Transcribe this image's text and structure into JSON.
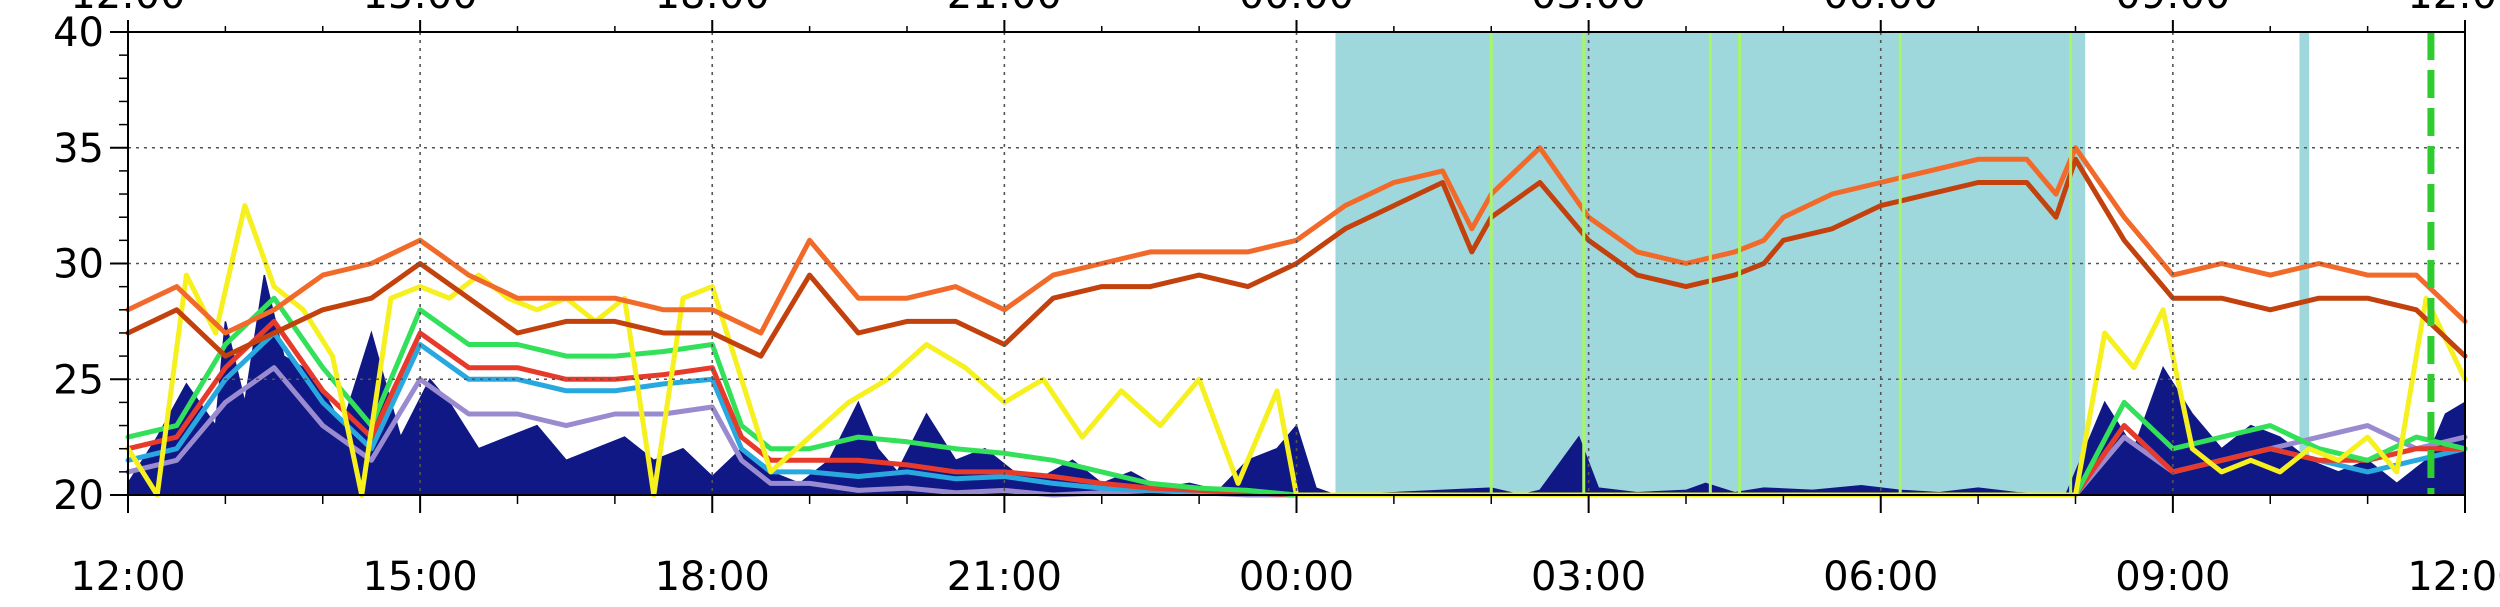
{
  "chart_data": {
    "type": "line",
    "title": "",
    "xlabel": "",
    "ylabel": "",
    "ylim": [
      20,
      40
    ],
    "xlim_hours": [
      0,
      24
    ],
    "x_unit": "hours since 12:00",
    "x_ticks": [
      {
        "h": 0,
        "label": "12:00"
      },
      {
        "h": 3,
        "label": "15:00"
      },
      {
        "h": 6,
        "label": "18:00"
      },
      {
        "h": 9,
        "label": "21:00"
      },
      {
        "h": 12,
        "label": "00:00"
      },
      {
        "h": 15,
        "label": "03:00"
      },
      {
        "h": 18,
        "label": "06:00"
      },
      {
        "h": 21,
        "label": "09:00"
      },
      {
        "h": 24,
        "label": "12:00"
      }
    ],
    "y_ticks": [
      20,
      25,
      30,
      35,
      40
    ],
    "grid": true,
    "background_color": "#ffffff",
    "shaded_intervals": [
      {
        "start": 12.4,
        "end": 20.1,
        "color": "#9fd8dc"
      },
      {
        "start": 22.3,
        "end": 22.4,
        "color": "#9fd8dc"
      }
    ],
    "marker_lines": [
      {
        "x": 14.0,
        "color": "#a9f56a"
      },
      {
        "x": 14.95,
        "color": "#a9f56a"
      },
      {
        "x": 16.25,
        "color": "#a9f56a"
      },
      {
        "x": 16.55,
        "color": "#a9f56a"
      },
      {
        "x": 18.2,
        "color": "#a9f56a"
      },
      {
        "x": 19.95,
        "color": "#a9f56a"
      },
      {
        "x": 23.65,
        "color": "#2ecc2e",
        "dashed": true
      }
    ],
    "series": [
      {
        "color": "#101886",
        "style": "area",
        "x": [
          0,
          0.3,
          0.6,
          0.9,
          1.0,
          1.2,
          1.4,
          1.6,
          1.8,
          2.0,
          2.2,
          2.5,
          2.8,
          3.1,
          3.3,
          3.6,
          3.9,
          4.2,
          4.5,
          4.8,
          5.1,
          5.4,
          5.7,
          6.0,
          6.3,
          6.6,
          6.9,
          7.2,
          7.5,
          7.7,
          7.9,
          8.2,
          8.5,
          8.8,
          9.1,
          9.4,
          9.7,
          10.0,
          10.3,
          10.6,
          10.9,
          11.2,
          11.5,
          11.8,
          12.0,
          12.2,
          12.4,
          13.0,
          13.5,
          14.0,
          14.3,
          14.5,
          14.9,
          15.1,
          15.5,
          16.0,
          16.2,
          16.5,
          16.8,
          17.3,
          17.8,
          18.2,
          18.6,
          19.0,
          19.4,
          19.9,
          20.3,
          20.6,
          20.9,
          21.2,
          21.5,
          21.8,
          22.1,
          22.4,
          22.7,
          23.0,
          23.3,
          23.6,
          23.8,
          24.0
        ],
        "values": [
          20.5,
          22.5,
          24.8,
          23.0,
          27.5,
          24.0,
          29.5,
          26.0,
          25.5,
          24.5,
          23.0,
          27.0,
          22.5,
          25.0,
          24.0,
          22.0,
          22.5,
          23.0,
          21.5,
          22.0,
          22.5,
          21.5,
          22.0,
          20.8,
          22.0,
          21.0,
          20.5,
          21.5,
          24.0,
          22.0,
          21.0,
          23.5,
          21.5,
          22.0,
          21.0,
          20.8,
          21.5,
          20.5,
          21.0,
          20.3,
          20.5,
          20.2,
          21.5,
          22.0,
          23.0,
          20.3,
          20.0,
          20.1,
          20.2,
          20.3,
          20.0,
          20.2,
          22.5,
          20.3,
          20.1,
          20.2,
          20.5,
          20.1,
          20.3,
          20.2,
          20.4,
          20.2,
          20.1,
          20.3,
          20.1,
          20.0,
          24.0,
          22.0,
          25.5,
          23.5,
          22.0,
          23.0,
          22.5,
          21.5,
          21.0,
          21.5,
          20.5,
          21.5,
          23.5,
          24.0
        ]
      },
      {
        "color": "#9a8bd0",
        "style": "line",
        "x": [
          0,
          0.5,
          1.0,
          1.5,
          2.0,
          2.5,
          3.0,
          3.5,
          4.0,
          4.5,
          5.0,
          5.5,
          6.0,
          6.3,
          6.6,
          7.0,
          7.5,
          8.0,
          8.5,
          9.0,
          9.5,
          10.0,
          10.5,
          11.0,
          11.5,
          12.0,
          20.0,
          20.5,
          21.0,
          21.5,
          22.0,
          22.5,
          23.0,
          23.5,
          24.0
        ],
        "values": [
          21.0,
          21.5,
          24.0,
          25.5,
          23.0,
          21.5,
          25.0,
          23.5,
          23.5,
          23.0,
          23.5,
          23.5,
          23.8,
          21.5,
          20.5,
          20.5,
          20.2,
          20.3,
          20.1,
          20.2,
          20.0,
          20.1,
          20.2,
          20.1,
          20.0,
          20.0,
          20.0,
          22.5,
          21.0,
          21.5,
          22.0,
          22.5,
          23.0,
          22.0,
          22.5
        ]
      },
      {
        "color": "#29a8e0",
        "style": "line",
        "x": [
          0,
          0.5,
          1.0,
          1.5,
          2.0,
          2.5,
          3.0,
          3.5,
          4.0,
          4.5,
          5.0,
          5.5,
          6.0,
          6.3,
          6.6,
          7.0,
          7.5,
          8.0,
          8.5,
          9.0,
          9.5,
          10.0,
          10.5,
          11.0,
          11.5,
          12.0,
          20.0,
          20.5,
          21.0,
          21.5,
          22.0,
          22.5,
          23.0,
          23.5,
          24.0
        ],
        "values": [
          21.5,
          22.0,
          25.0,
          27.0,
          24.0,
          22.0,
          26.5,
          25.0,
          25.0,
          24.5,
          24.5,
          24.8,
          25.0,
          22.0,
          21.0,
          21.0,
          20.8,
          21.0,
          20.7,
          20.8,
          20.5,
          20.3,
          20.2,
          20.2,
          20.1,
          20.0,
          20.0,
          23.0,
          21.0,
          21.5,
          22.0,
          21.5,
          21.0,
          21.5,
          22.0
        ]
      },
      {
        "color": "#e83a2a",
        "style": "line",
        "x": [
          0,
          0.5,
          1.0,
          1.5,
          2.0,
          2.5,
          3.0,
          3.5,
          4.0,
          4.5,
          5.0,
          5.5,
          6.0,
          6.3,
          6.6,
          7.0,
          7.5,
          8.0,
          8.5,
          9.0,
          9.5,
          10.0,
          10.5,
          11.0,
          11.5,
          12.0,
          20.0,
          20.5,
          21.0,
          21.5,
          22.0,
          22.5,
          23.0,
          23.5,
          24.0
        ],
        "values": [
          22.0,
          22.5,
          25.5,
          27.5,
          24.5,
          22.5,
          27.0,
          25.5,
          25.5,
          25.0,
          25.0,
          25.2,
          25.5,
          22.5,
          21.5,
          21.5,
          21.5,
          21.3,
          21.0,
          21.0,
          20.8,
          20.5,
          20.3,
          20.2,
          20.1,
          20.0,
          20.0,
          23.0,
          21.0,
          21.5,
          22.0,
          21.5,
          21.5,
          22.0,
          22.0
        ]
      },
      {
        "color": "#33e05a",
        "style": "line",
        "x": [
          0,
          0.5,
          1.0,
          1.5,
          2.0,
          2.5,
          3.0,
          3.5,
          4.0,
          4.5,
          5.0,
          5.5,
          6.0,
          6.3,
          6.6,
          7.0,
          7.5,
          8.0,
          8.5,
          9.0,
          9.5,
          10.0,
          10.5,
          11.0,
          11.5,
          12.0,
          20.0,
          20.5,
          21.0,
          21.5,
          22.0,
          22.5,
          23.0,
          23.5,
          24.0
        ],
        "values": [
          22.5,
          23.0,
          26.5,
          28.5,
          25.5,
          23.0,
          28.0,
          26.5,
          26.5,
          26.0,
          26.0,
          26.2,
          26.5,
          23.0,
          22.0,
          22.0,
          22.5,
          22.3,
          22.0,
          21.8,
          21.5,
          21.0,
          20.5,
          20.3,
          20.2,
          20.0,
          20.0,
          24.0,
          22.0,
          22.5,
          23.0,
          22.0,
          21.5,
          22.5,
          22.0
        ]
      },
      {
        "color": "#f5f01e",
        "style": "line",
        "x": [
          0,
          0.3,
          0.6,
          0.9,
          1.2,
          1.5,
          1.8,
          2.1,
          2.4,
          2.7,
          3.0,
          3.3,
          3.6,
          3.9,
          4.2,
          4.5,
          4.8,
          5.1,
          5.4,
          5.7,
          6.0,
          6.3,
          6.6,
          7.0,
          7.4,
          7.8,
          8.2,
          8.6,
          9.0,
          9.4,
          9.8,
          10.2,
          10.6,
          11.0,
          11.4,
          11.8,
          12.0,
          20.0,
          20.3,
          20.6,
          20.9,
          21.2,
          21.5,
          21.8,
          22.1,
          22.4,
          22.7,
          23.0,
          23.3,
          23.6,
          24.0
        ],
        "values": [
          22.0,
          20.0,
          29.5,
          27.0,
          32.5,
          29.0,
          28.0,
          26.0,
          20.0,
          28.5,
          29.0,
          28.5,
          29.5,
          28.5,
          28.0,
          28.5,
          27.5,
          28.5,
          20.0,
          28.5,
          29.0,
          25.0,
          21.0,
          22.5,
          24.0,
          25.0,
          26.5,
          25.5,
          24.0,
          25.0,
          22.5,
          24.5,
          23.0,
          25.0,
          20.5,
          24.5,
          20.0,
          20.0,
          27.0,
          25.5,
          28.0,
          22.0,
          21.0,
          21.5,
          21.0,
          22.0,
          21.5,
          22.5,
          21.0,
          28.5,
          25.0
        ]
      },
      {
        "color": "#c2410c",
        "style": "line",
        "x": [
          0,
          0.5,
          1.0,
          1.5,
          2.0,
          2.5,
          3.0,
          3.5,
          4.0,
          4.5,
          5.0,
          5.5,
          6.0,
          6.5,
          7.0,
          7.5,
          8.0,
          8.5,
          9.0,
          9.5,
          10.0,
          10.5,
          11.0,
          11.5,
          12.0,
          12.5,
          13.0,
          13.5,
          13.8,
          14.0,
          14.5,
          15.0,
          15.5,
          16.0,
          16.5,
          16.8,
          17.0,
          17.5,
          18.0,
          18.5,
          19.0,
          19.5,
          19.8,
          20.0,
          20.5,
          21.0,
          21.5,
          22.0,
          22.5,
          23.0,
          23.5,
          24.0
        ],
        "values": [
          27.0,
          28.0,
          26.0,
          27.0,
          28.0,
          28.5,
          30.0,
          28.5,
          27.0,
          27.5,
          27.5,
          27.0,
          27.0,
          26.0,
          29.5,
          27.0,
          27.5,
          27.5,
          26.5,
          28.5,
          29.0,
          29.0,
          29.5,
          29.0,
          30.0,
          31.5,
          32.5,
          33.5,
          30.5,
          32.0,
          33.5,
          31.0,
          29.5,
          29.0,
          29.5,
          30.0,
          31.0,
          31.5,
          32.5,
          33.0,
          33.5,
          33.5,
          32.0,
          34.5,
          31.0,
          28.5,
          28.5,
          28.0,
          28.5,
          28.5,
          28.0,
          26.0
        ]
      },
      {
        "color": "#f26a2a",
        "style": "line",
        "x": [
          0,
          0.5,
          1.0,
          1.5,
          2.0,
          2.5,
          3.0,
          3.5,
          4.0,
          4.5,
          5.0,
          5.5,
          6.0,
          6.5,
          7.0,
          7.5,
          8.0,
          8.5,
          9.0,
          9.5,
          10.0,
          10.5,
          11.0,
          11.5,
          12.0,
          12.5,
          13.0,
          13.5,
          13.8,
          14.0,
          14.5,
          15.0,
          15.5,
          16.0,
          16.5,
          16.8,
          17.0,
          17.5,
          18.0,
          18.5,
          19.0,
          19.5,
          19.8,
          20.0,
          20.5,
          21.0,
          21.5,
          22.0,
          22.5,
          23.0,
          23.5,
          24.0
        ],
        "values": [
          28.0,
          29.0,
          27.0,
          28.0,
          29.5,
          30.0,
          31.0,
          29.5,
          28.5,
          28.5,
          28.5,
          28.0,
          28.0,
          27.0,
          31.0,
          28.5,
          28.5,
          29.0,
          28.0,
          29.5,
          30.0,
          30.5,
          30.5,
          30.5,
          31.0,
          32.5,
          33.5,
          34.0,
          31.5,
          33.0,
          35.0,
          32.0,
          30.5,
          30.0,
          30.5,
          31.0,
          32.0,
          33.0,
          33.5,
          34.0,
          34.5,
          34.5,
          33.0,
          35.0,
          32.0,
          29.5,
          30.0,
          29.5,
          30.0,
          29.5,
          29.5,
          27.5
        ]
      }
    ]
  }
}
